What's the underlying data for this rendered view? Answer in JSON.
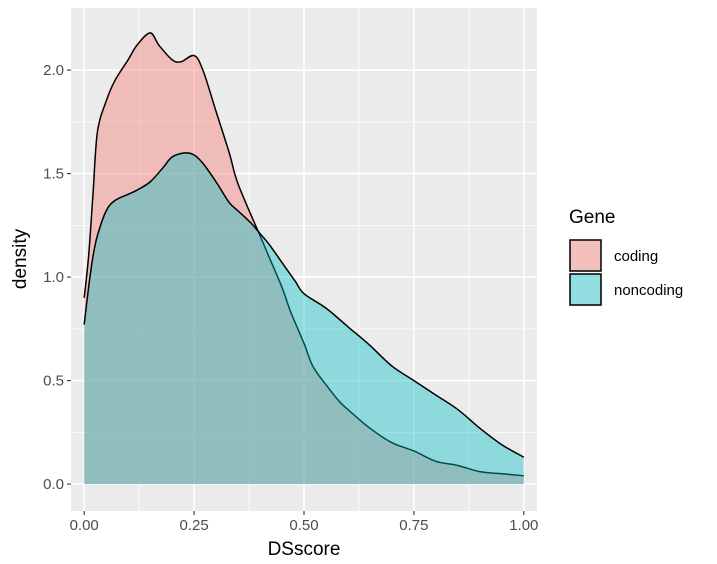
{
  "chart_data": {
    "type": "area",
    "subtype": "density",
    "xlabel": "DSscore",
    "ylabel": "density",
    "xlim": [
      -0.03,
      1.03
    ],
    "ylim": [
      -0.13,
      2.3
    ],
    "x_ticks": [
      0.0,
      0.25,
      0.5,
      0.75,
      1.0
    ],
    "x_tick_labels": [
      "0.00",
      "0.25",
      "0.50",
      "0.75",
      "1.00"
    ],
    "y_ticks": [
      0.0,
      0.5,
      1.0,
      1.5,
      2.0
    ],
    "y_tick_labels": [
      "0.0",
      "0.5",
      "1.0",
      "1.5",
      "2.0"
    ],
    "grid": true,
    "legend": {
      "title": "Gene",
      "position": "right"
    },
    "series": [
      {
        "name": "coding",
        "color": "#F8766D",
        "x": [
          0.0,
          0.01,
          0.02,
          0.03,
          0.05,
          0.07,
          0.1,
          0.12,
          0.15,
          0.17,
          0.2,
          0.22,
          0.25,
          0.27,
          0.3,
          0.33,
          0.35,
          0.4,
          0.42,
          0.45,
          0.47,
          0.5,
          0.52,
          0.55,
          0.58,
          0.6,
          0.65,
          0.7,
          0.75,
          0.8,
          0.85,
          0.9,
          0.95,
          1.0
        ],
        "values": [
          0.9,
          1.1,
          1.4,
          1.7,
          1.85,
          1.95,
          2.05,
          2.12,
          2.18,
          2.12,
          2.05,
          2.04,
          2.07,
          2.0,
          1.8,
          1.6,
          1.45,
          1.2,
          1.1,
          0.95,
          0.83,
          0.68,
          0.57,
          0.48,
          0.4,
          0.36,
          0.27,
          0.2,
          0.16,
          0.11,
          0.09,
          0.06,
          0.05,
          0.04
        ]
      },
      {
        "name": "noncoding",
        "color": "#00BFC4",
        "x": [
          0.0,
          0.01,
          0.02,
          0.03,
          0.05,
          0.07,
          0.1,
          0.12,
          0.15,
          0.18,
          0.2,
          0.23,
          0.25,
          0.27,
          0.3,
          0.33,
          0.35,
          0.38,
          0.4,
          0.42,
          0.45,
          0.48,
          0.5,
          0.55,
          0.6,
          0.65,
          0.7,
          0.75,
          0.8,
          0.85,
          0.9,
          0.95,
          1.0
        ],
        "values": [
          0.77,
          0.95,
          1.1,
          1.2,
          1.32,
          1.37,
          1.4,
          1.42,
          1.46,
          1.53,
          1.58,
          1.6,
          1.59,
          1.55,
          1.46,
          1.36,
          1.32,
          1.26,
          1.21,
          1.16,
          1.07,
          0.98,
          0.92,
          0.85,
          0.76,
          0.67,
          0.57,
          0.5,
          0.43,
          0.36,
          0.27,
          0.19,
          0.13
        ]
      }
    ]
  }
}
